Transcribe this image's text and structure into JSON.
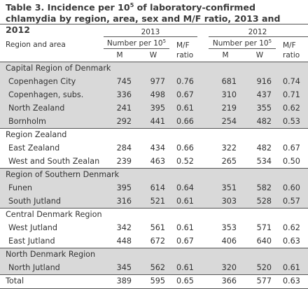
{
  "title": {
    "part1": "Table 3. Incidence per 10",
    "sup": "5",
    "part2": " of laboratory-confirmed chlamydia by region, area, sex and M/F ratio, 2013 and 2012"
  },
  "header": {
    "region_area": "Region and area",
    "year_2013": "2013",
    "year_2012": "2012",
    "number_per": "Number per 10",
    "number_sup": "5",
    "m": "M",
    "w": "W",
    "mf_line1": "M/F",
    "mf_line2": "ratio"
  },
  "regions": [
    {
      "name": "Capital Region of Denmark",
      "rows": [
        {
          "area": "Copenhagen City",
          "m13": "745",
          "w13": "977",
          "r13": "0.76",
          "m12": "681",
          "w12": "916",
          "r12": "0.74"
        },
        {
          "area": "Copenhagen, subs.",
          "m13": "336",
          "w13": "498",
          "r13": "0.67",
          "m12": "310",
          "w12": "437",
          "r12": "0.71"
        },
        {
          "area": "North Zealand",
          "m13": "241",
          "w13": "395",
          "r13": "0.61",
          "m12": "219",
          "w12": "355",
          "r12": "0.62"
        },
        {
          "area": "Bornholm",
          "m13": "292",
          "w13": "441",
          "r13": "0.66",
          "m12": "254",
          "w12": "482",
          "r12": "0.53"
        }
      ]
    },
    {
      "name": "Region Zealand",
      "rows": [
        {
          "area": "East Zealand",
          "m13": "284",
          "w13": "434",
          "r13": "0.66",
          "m12": "322",
          "w12": "482",
          "r12": "0.67"
        },
        {
          "area": "West and South Zealand",
          "m13": "239",
          "w13": "463",
          "r13": "0.52",
          "m12": "265",
          "w12": "534",
          "r12": "0.50"
        }
      ]
    },
    {
      "name": "Region of Southern Denmark",
      "rows": [
        {
          "area": "Funen",
          "m13": "395",
          "w13": "614",
          "r13": "0.64",
          "m12": "351",
          "w12": "582",
          "r12": "0.60"
        },
        {
          "area": "South Jutland",
          "m13": "316",
          "w13": "521",
          "r13": "0.61",
          "m12": "303",
          "w12": "528",
          "r12": "0.57"
        }
      ]
    },
    {
      "name": "Central Denmark Region",
      "rows": [
        {
          "area": "West Jutland",
          "m13": "342",
          "w13": "561",
          "r13": "0.61",
          "m12": "353",
          "w12": "571",
          "r12": "0.62"
        },
        {
          "area": "East Jutland",
          "m13": "448",
          "w13": "672",
          "r13": "0.67",
          "m12": "406",
          "w12": "640",
          "r12": "0.63"
        }
      ]
    },
    {
      "name": "North Denmark Region",
      "rows": [
        {
          "area": "North Jutland",
          "m13": "345",
          "w13": "562",
          "r13": "0.61",
          "m12": "320",
          "w12": "520",
          "r12": "0.61"
        }
      ]
    }
  ],
  "total": {
    "label": "Total",
    "m13": "389",
    "w13": "595",
    "r13": "0.65",
    "m12": "366",
    "w12": "577",
    "r12": "0.63"
  },
  "colors": {
    "shade": "#d9d9d9",
    "rule": "#555555",
    "text": "#333333"
  }
}
